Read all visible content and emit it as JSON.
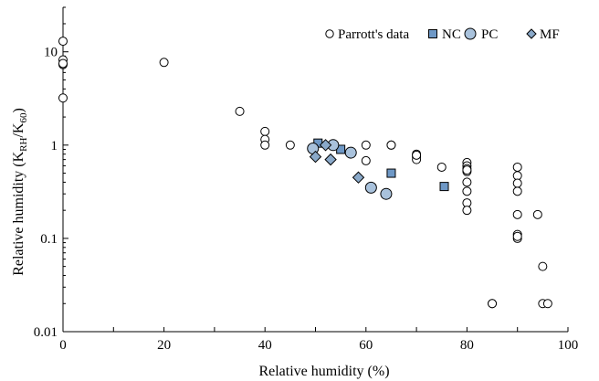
{
  "chart_data": {
    "type": "scatter",
    "title": "",
    "xlabel": "Relative humidity (%)",
    "ylabel": {
      "prefix": "Relative humidity (K",
      "sub1": "RH",
      "mid": "/K",
      "sub2": "60",
      "suffix": ")"
    },
    "xlim": [
      0,
      100
    ],
    "ylim": [
      0.01,
      30
    ],
    "yscale": "log",
    "x_ticks": [
      0,
      20,
      40,
      60,
      80,
      100
    ],
    "x_tick_labels": [
      "0",
      "20",
      "40",
      "60",
      "80",
      "100"
    ],
    "y_ticks": [
      0.01,
      0.1,
      1,
      10
    ],
    "y_tick_labels": [
      "0.01",
      "0.1",
      "1",
      "10"
    ],
    "grid": false,
    "legend_position": "top-right",
    "series": [
      {
        "name": "Parrott's data",
        "marker": "circle",
        "fill": "#ffffff",
        "x": [
          0,
          0,
          0,
          0,
          0,
          20,
          35,
          40,
          40,
          40,
          45,
          60,
          60,
          65,
          65,
          70,
          70,
          70,
          70,
          75,
          80,
          80,
          80,
          80,
          80,
          80,
          80,
          80,
          80,
          85,
          85,
          90,
          90,
          90,
          90,
          90,
          90,
          90,
          90,
          94,
          95,
          95,
          96
        ],
        "y": [
          13,
          8.2,
          7.3,
          3.2,
          7.5,
          7.7,
          2.3,
          1.4,
          1.15,
          1.0,
          1.0,
          1.0,
          0.68,
          1.0,
          1.0,
          0.8,
          0.75,
          0.7,
          0.78,
          0.58,
          0.65,
          0.6,
          0.56,
          0.52,
          0.4,
          0.32,
          0.24,
          0.2,
          0.54,
          0.02,
          0.02,
          0.58,
          0.47,
          0.39,
          0.32,
          0.18,
          0.11,
          0.1,
          0.105,
          0.18,
          0.05,
          0.02,
          0.02
        ]
      },
      {
        "name": "NC",
        "marker": "square",
        "fill": "#6e98c6",
        "x": [
          50.5,
          55,
          65,
          75.5
        ],
        "y": [
          1.05,
          0.9,
          0.5,
          0.36
        ]
      },
      {
        "name": "PC",
        "marker": "circle",
        "fill": "#a9c2dc",
        "x": [
          49.5,
          53.5,
          57,
          61,
          64
        ],
        "y": [
          0.92,
          1.0,
          0.83,
          0.35,
          0.3
        ]
      },
      {
        "name": "MF",
        "marker": "diamond",
        "fill": "#8aa9c9",
        "x": [
          50,
          52,
          53,
          58.5
        ],
        "y": [
          0.75,
          1.0,
          0.7,
          0.45
        ]
      }
    ]
  }
}
